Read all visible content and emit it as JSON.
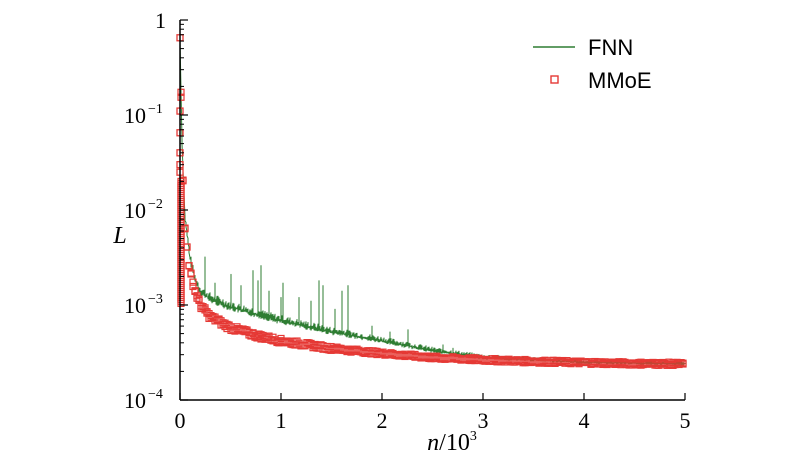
{
  "chart_data": {
    "type": "line",
    "xlabel": {
      "italic": "n",
      "rest": "/10",
      "sup": "3"
    },
    "ylabel": "L",
    "xlim": [
      0,
      5
    ],
    "ylim": [
      0.0001,
      1
    ],
    "yscale": "log",
    "grid": false,
    "legend_position": "top-right",
    "x_ticks": [
      {
        "value": 0,
        "label": "0"
      },
      {
        "value": 1,
        "label": "1"
      },
      {
        "value": 2,
        "label": "2"
      },
      {
        "value": 3,
        "label": "3"
      },
      {
        "value": 4,
        "label": "4"
      },
      {
        "value": 5,
        "label": "5"
      }
    ],
    "y_ticks": [
      {
        "value": 1,
        "base": "1",
        "exp": ""
      },
      {
        "value": 0.1,
        "base": "10",
        "exp": "−1"
      },
      {
        "value": 0.01,
        "base": "10",
        "exp": "−2"
      },
      {
        "value": 0.001,
        "base": "10",
        "exp": "−3"
      },
      {
        "value": 0.0001,
        "base": "10",
        "exp": "−4"
      }
    ],
    "series": [
      {
        "name": "FNN",
        "style": "line",
        "color": "#2e7d32",
        "x": [
          0.0,
          0.02,
          0.05,
          0.1,
          0.15,
          0.2,
          0.3,
          0.5,
          0.75,
          1.0,
          1.5,
          2.0,
          2.5,
          3.0,
          3.5,
          4.0,
          4.5,
          5.0
        ],
        "y": [
          0.65,
          0.05,
          0.008,
          0.003,
          0.0018,
          0.0014,
          0.00115,
          0.00095,
          0.0008,
          0.00068,
          0.00052,
          0.00042,
          0.00033,
          0.00028,
          0.000265,
          0.00025,
          0.000245,
          0.00024
        ],
        "spikes": [
          {
            "x": 0.25,
            "y": 0.0032
          },
          {
            "x": 0.35,
            "y": 0.0017
          },
          {
            "x": 0.5,
            "y": 0.0021
          },
          {
            "x": 0.6,
            "y": 0.0016
          },
          {
            "x": 0.72,
            "y": 0.0023
          },
          {
            "x": 0.77,
            "y": 0.0018
          },
          {
            "x": 0.8,
            "y": 0.0026
          },
          {
            "x": 0.88,
            "y": 0.0014
          },
          {
            "x": 1.0,
            "y": 0.0012
          },
          {
            "x": 1.02,
            "y": 0.0017
          },
          {
            "x": 1.18,
            "y": 0.0012
          },
          {
            "x": 1.3,
            "y": 0.0011
          },
          {
            "x": 1.38,
            "y": 0.0018
          },
          {
            "x": 1.42,
            "y": 0.0016
          },
          {
            "x": 1.53,
            "y": 0.0009
          },
          {
            "x": 1.6,
            "y": 0.0014
          },
          {
            "x": 1.66,
            "y": 0.0016
          },
          {
            "x": 1.9,
            "y": 0.0006
          },
          {
            "x": 2.08,
            "y": 0.00052
          },
          {
            "x": 2.26,
            "y": 0.00055
          },
          {
            "x": 2.6,
            "y": 0.00038
          },
          {
            "x": 2.7,
            "y": 0.00035
          }
        ]
      },
      {
        "name": "MMoE",
        "style": "markers",
        "marker": "square",
        "color": "#e53935",
        "x": [
          0.0,
          0.02,
          0.05,
          0.1,
          0.15,
          0.2,
          0.3,
          0.5,
          0.75,
          1.0,
          1.5,
          2.0,
          2.5,
          3.0,
          3.5,
          4.0,
          4.5,
          5.0
        ],
        "y": [
          0.65,
          0.04,
          0.006,
          0.0022,
          0.0014,
          0.001,
          0.00075,
          0.00058,
          0.00048,
          0.00042,
          0.00035,
          0.00031,
          0.00028,
          0.000265,
          0.000255,
          0.000248,
          0.000242,
          0.00024
        ],
        "early_markers": [
          {
            "x": 0.0,
            "y": 0.65
          },
          {
            "x": 0.0,
            "y": 0.11
          },
          {
            "x": 0.0,
            "y": 0.065
          },
          {
            "x": 0.0,
            "y": 0.04
          },
          {
            "x": 0.0,
            "y": 0.03
          },
          {
            "x": 0.0,
            "y": 0.025
          }
        ]
      }
    ]
  }
}
